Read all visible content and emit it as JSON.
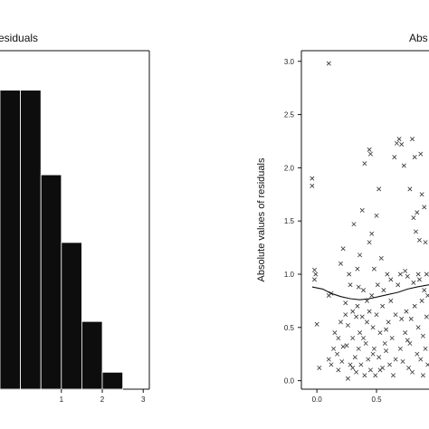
{
  "chart_data": [
    {
      "type": "bar",
      "title": "esiduals",
      "x_ticks": [
        {
          "value": 1,
          "label": "1"
        },
        {
          "value": 2,
          "label": "2"
        },
        {
          "value": 3,
          "label": "3"
        }
      ],
      "bins": [
        {
          "from": -0.5,
          "to": 0.0,
          "count": 0.53
        },
        {
          "from": 0.0,
          "to": 0.5,
          "count": 0.53
        },
        {
          "from": 0.5,
          "to": 1.0,
          "count": 0.38
        },
        {
          "from": 1.0,
          "to": 1.5,
          "count": 0.26
        },
        {
          "from": 1.5,
          "to": 2.0,
          "count": 0.12
        },
        {
          "from": 2.0,
          "to": 2.5,
          "count": 0.03
        }
      ],
      "xlim": [
        -0.5,
        3.15
      ],
      "ylim": [
        0,
        0.6
      ]
    },
    {
      "type": "scatter",
      "title": "Abs",
      "ylabel": "Absolute values of residuals",
      "x_ticks": [
        {
          "value": 0.0,
          "label": "0.0"
        },
        {
          "value": 0.5,
          "label": "0.5"
        }
      ],
      "y_ticks": [
        {
          "value": 0.0,
          "label": "0.0"
        },
        {
          "value": 0.5,
          "label": "0.5"
        },
        {
          "value": 1.0,
          "label": "1.0"
        },
        {
          "value": 1.5,
          "label": "1.5"
        },
        {
          "value": 2.0,
          "label": "2.0"
        },
        {
          "value": 2.5,
          "label": "2.5"
        },
        {
          "value": 3.0,
          "label": "3.0"
        }
      ],
      "xlim": [
        -0.13,
        0.94
      ],
      "ylim": [
        -0.08,
        3.1
      ],
      "marker": "x",
      "points": [
        [
          -0.04,
          1.9
        ],
        [
          -0.04,
          1.83
        ],
        [
          -0.02,
          1.04
        ],
        [
          -0.01,
          1.0
        ],
        [
          -0.02,
          0.95
        ],
        [
          0.0,
          0.53
        ],
        [
          0.02,
          0.12
        ],
        [
          0.1,
          2.98
        ],
        [
          0.1,
          0.8
        ],
        [
          0.12,
          0.82
        ],
        [
          0.1,
          0.2
        ],
        [
          0.12,
          0.15
        ],
        [
          0.15,
          0.45
        ],
        [
          0.17,
          0.25
        ],
        [
          0.18,
          0.1
        ],
        [
          0.2,
          0.55
        ],
        [
          0.2,
          1.1
        ],
        [
          0.21,
          0.18
        ],
        [
          0.22,
          1.24
        ],
        [
          0.24,
          0.73
        ],
        [
          0.25,
          0.33
        ],
        [
          0.26,
          0.02
        ],
        [
          0.27,
          1.0
        ],
        [
          0.28,
          0.9
        ],
        [
          0.28,
          0.15
        ],
        [
          0.3,
          0.65
        ],
        [
          0.3,
          0.4
        ],
        [
          0.31,
          1.47
        ],
        [
          0.32,
          0.22
        ],
        [
          0.33,
          0.08
        ],
        [
          0.34,
          0.7
        ],
        [
          0.34,
          1.05
        ],
        [
          0.35,
          0.3
        ],
        [
          0.36,
          0.45
        ],
        [
          0.37,
          0.15
        ],
        [
          0.36,
          1.18
        ],
        [
          0.38,
          0.6
        ],
        [
          0.38,
          1.6
        ],
        [
          0.39,
          0.85
        ],
        [
          0.4,
          2.04
        ],
        [
          0.4,
          0.05
        ],
        [
          0.41,
          0.35
        ],
        [
          0.42,
          0.55
        ],
        [
          0.43,
          0.2
        ],
        [
          0.44,
          1.3
        ],
        [
          0.44,
          2.17
        ],
        [
          0.45,
          0.1
        ],
        [
          0.45,
          2.13
        ],
        [
          0.46,
          1.38
        ],
        [
          0.46,
          0.8
        ],
        [
          0.47,
          0.5
        ],
        [
          0.48,
          1.05
        ],
        [
          0.48,
          0.3
        ],
        [
          0.49,
          0.05
        ],
        [
          0.5,
          0.62
        ],
        [
          0.5,
          1.55
        ],
        [
          0.51,
          0.9
        ],
        [
          0.52,
          0.22
        ],
        [
          0.52,
          1.8
        ],
        [
          0.53,
          0.45
        ],
        [
          0.54,
          1.15
        ],
        [
          0.55,
          0.7
        ],
        [
          0.55,
          0.12
        ],
        [
          0.56,
          0.85
        ],
        [
          0.57,
          0.35
        ],
        [
          0.58,
          0.28
        ],
        [
          0.59,
          1.0
        ],
        [
          0.6,
          0.55
        ],
        [
          0.61,
          0.15
        ],
        [
          0.62,
          0.75
        ],
        [
          0.63,
          0.4
        ],
        [
          0.64,
          0.05
        ],
        [
          0.65,
          2.1
        ],
        [
          0.66,
          0.62
        ],
        [
          0.67,
          2.23
        ],
        [
          0.68,
          0.9
        ],
        [
          0.69,
          2.27
        ],
        [
          0.7,
          0.3
        ],
        [
          0.7,
          1.0
        ],
        [
          0.71,
          2.22
        ],
        [
          0.72,
          0.18
        ],
        [
          0.73,
          2.02
        ],
        [
          0.74,
          1.03
        ],
        [
          0.74,
          0.45
        ],
        [
          0.75,
          0.65
        ],
        [
          0.76,
          0.98
        ],
        [
          0.77,
          0.12
        ],
        [
          0.78,
          1.8
        ],
        [
          0.78,
          0.35
        ],
        [
          0.79,
          0.58
        ],
        [
          0.8,
          2.27
        ],
        [
          0.8,
          0.08
        ],
        [
          0.81,
          1.53
        ],
        [
          0.82,
          0.7
        ],
        [
          0.82,
          2.1
        ],
        [
          0.83,
          1.4
        ],
        [
          0.84,
          0.25
        ],
        [
          0.84,
          1.58
        ],
        [
          0.85,
          0.5
        ],
        [
          0.86,
          1.32
        ],
        [
          0.86,
          0.95
        ],
        [
          0.87,
          0.2
        ],
        [
          0.87,
          2.13
        ],
        [
          0.88,
          0.75
        ],
        [
          0.88,
          1.75
        ],
        [
          0.89,
          0.42
        ],
        [
          0.89,
          0.05
        ],
        [
          0.9,
          1.63
        ],
        [
          0.9,
          0.85
        ],
        [
          0.91,
          1.3
        ],
        [
          0.91,
          0.3
        ],
        [
          0.92,
          1.0
        ],
        [
          0.92,
          0.6
        ],
        [
          0.93,
          0.15
        ],
        [
          0.93,
          0.8
        ],
        [
          0.24,
          0.62
        ],
        [
          0.18,
          0.4
        ],
        [
          0.14,
          0.3
        ],
        [
          0.3,
          0.12
        ],
        [
          0.35,
          0.88
        ],
        [
          0.42,
          0.75
        ],
        [
          0.47,
          0.25
        ],
        [
          0.53,
          0.1
        ],
        [
          0.58,
          0.48
        ],
        [
          0.66,
          0.2
        ],
        [
          0.71,
          0.58
        ],
        [
          0.76,
          0.38
        ],
        [
          0.81,
          0.92
        ],
        [
          0.85,
          1.0
        ],
        [
          0.62,
          0.95
        ],
        [
          0.22,
          0.32
        ],
        [
          0.26,
          0.52
        ],
        [
          0.33,
          0.6
        ],
        [
          0.39,
          0.4
        ],
        [
          0.44,
          0.65
        ]
      ],
      "smooth_line": [
        [
          -0.04,
          0.88
        ],
        [
          0.05,
          0.86
        ],
        [
          0.12,
          0.82
        ],
        [
          0.2,
          0.79
        ],
        [
          0.28,
          0.77
        ],
        [
          0.36,
          0.76
        ],
        [
          0.44,
          0.77
        ],
        [
          0.52,
          0.79
        ],
        [
          0.6,
          0.81
        ],
        [
          0.68,
          0.83
        ],
        [
          0.76,
          0.86
        ],
        [
          0.84,
          0.88
        ],
        [
          0.94,
          0.9
        ]
      ]
    }
  ]
}
